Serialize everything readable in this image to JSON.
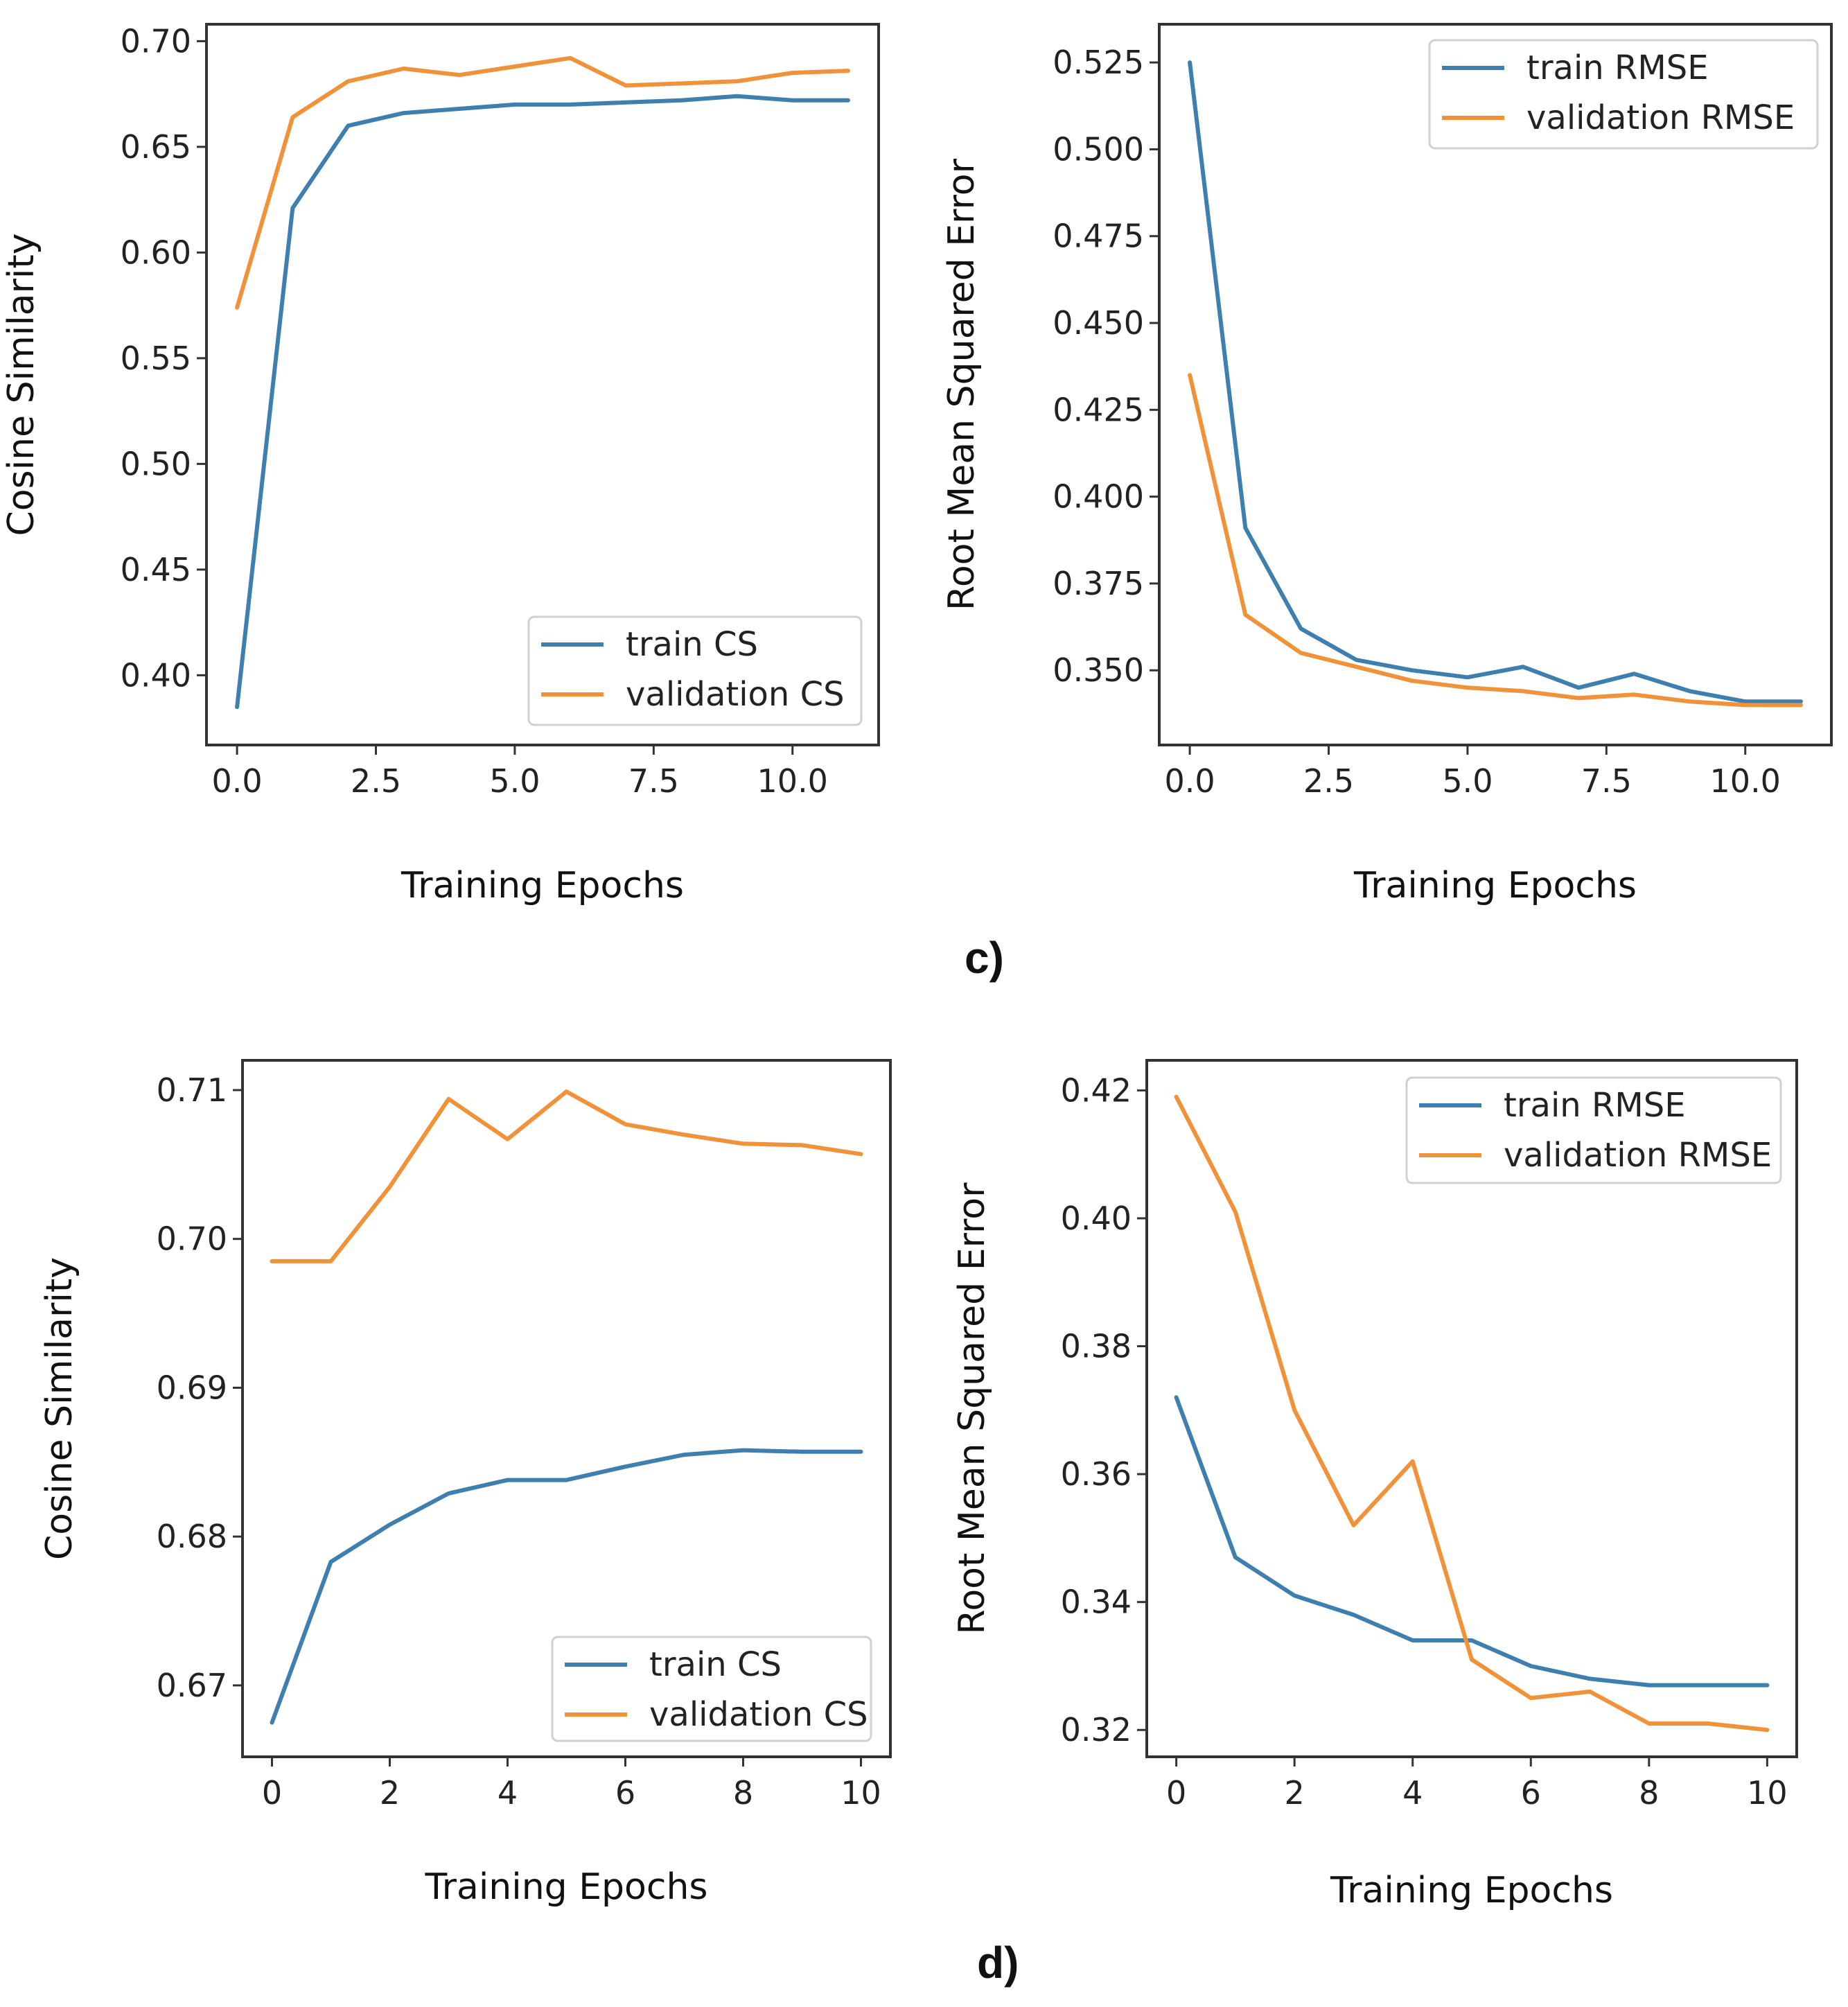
{
  "figure": {
    "panel_labels": [
      "c)",
      "d)"
    ]
  },
  "colors": {
    "train": "#3f7fb0",
    "validation": "#f0923a",
    "axes": "#333333",
    "text": "#222222",
    "legend_border": "#d0d0d0"
  },
  "chart_data": [
    {
      "id": "c-cs",
      "type": "line",
      "title": "",
      "xlabel": "Training Epochs",
      "ylabel": "Cosine Similarity",
      "xlim": [
        -0.55,
        11.55
      ],
      "ylim": [
        0.367,
        0.708
      ],
      "xticks": [
        0,
        2.5,
        5,
        7.5,
        10
      ],
      "xticklabels": [
        "0.0",
        "2.5",
        "5.0",
        "7.5",
        "10.0"
      ],
      "yticks": [
        0.4,
        0.45,
        0.5,
        0.55,
        0.6,
        0.65,
        0.7
      ],
      "yticklabels": [
        "0.40",
        "0.45",
        "0.50",
        "0.55",
        "0.60",
        "0.65",
        "0.70"
      ],
      "legend_position": "lower-right",
      "x": [
        0,
        1,
        2,
        3,
        4,
        5,
        6,
        7,
        8,
        9,
        10,
        11
      ],
      "series": [
        {
          "name": "train CS",
          "color_key": "train",
          "values": [
            0.385,
            0.621,
            0.66,
            0.666,
            0.668,
            0.67,
            0.67,
            0.671,
            0.672,
            0.674,
            0.672,
            0.672
          ]
        },
        {
          "name": "validation CS",
          "color_key": "validation",
          "values": [
            0.574,
            0.664,
            0.681,
            0.687,
            0.684,
            0.688,
            0.692,
            0.679,
            0.68,
            0.681,
            0.685,
            0.686
          ]
        }
      ]
    },
    {
      "id": "c-rmse",
      "type": "line",
      "title": "",
      "xlabel": "Training Epochs",
      "ylabel": "Root Mean Squared Error",
      "xlim": [
        -0.55,
        11.55
      ],
      "ylim": [
        0.3285,
        0.536
      ],
      "xticks": [
        0,
        2.5,
        5,
        7.5,
        10
      ],
      "xticklabels": [
        "0.0",
        "2.5",
        "5.0",
        "7.5",
        "10.0"
      ],
      "yticks": [
        0.35,
        0.375,
        0.4,
        0.425,
        0.45,
        0.475,
        0.5,
        0.525
      ],
      "yticklabels": [
        "0.350",
        "0.375",
        "0.400",
        "0.425",
        "0.450",
        "0.475",
        "0.500",
        "0.525"
      ],
      "legend_position": "upper-right",
      "x": [
        0,
        1,
        2,
        3,
        4,
        5,
        6,
        7,
        8,
        9,
        10,
        11
      ],
      "series": [
        {
          "name": "train RMSE",
          "color_key": "train",
          "values": [
            0.525,
            0.391,
            0.362,
            0.353,
            0.35,
            0.348,
            0.351,
            0.345,
            0.349,
            0.344,
            0.341,
            0.341
          ]
        },
        {
          "name": "validation RMSE",
          "color_key": "validation",
          "values": [
            0.435,
            0.366,
            0.355,
            0.351,
            0.347,
            0.345,
            0.344,
            0.342,
            0.343,
            0.341,
            0.34,
            0.34
          ]
        }
      ]
    },
    {
      "id": "d-cs",
      "type": "line",
      "title": "",
      "xlabel": "Training Epochs",
      "ylabel": "Cosine Similarity",
      "xlim": [
        -0.5,
        10.5
      ],
      "ylim": [
        0.6652,
        0.712
      ],
      "xticks": [
        0,
        2,
        4,
        6,
        8,
        10
      ],
      "xticklabels": [
        "0",
        "2",
        "4",
        "6",
        "8",
        "10"
      ],
      "yticks": [
        0.67,
        0.68,
        0.69,
        0.7,
        0.71
      ],
      "yticklabels": [
        "0.67",
        "0.68",
        "0.69",
        "0.70",
        "0.71"
      ],
      "legend_position": "lower-right",
      "x": [
        0,
        1,
        2,
        3,
        4,
        5,
        6,
        7,
        8,
        9,
        10
      ],
      "series": [
        {
          "name": "train CS",
          "color_key": "train",
          "values": [
            0.6675,
            0.6783,
            0.6808,
            0.6829,
            0.6838,
            0.6838,
            0.6847,
            0.6855,
            0.6858,
            0.6857,
            0.6857
          ]
        },
        {
          "name": "validation CS",
          "color_key": "validation",
          "values": [
            0.6985,
            0.6985,
            0.7035,
            0.7094,
            0.7067,
            0.7099,
            0.7077,
            0.707,
            0.7064,
            0.7063,
            0.7057
          ]
        }
      ]
    },
    {
      "id": "d-rmse",
      "type": "line",
      "title": "",
      "xlabel": "Training Epochs",
      "ylabel": "Root Mean Squared Error",
      "xlim": [
        -0.5,
        10.5
      ],
      "ylim": [
        0.3158,
        0.4247
      ],
      "xticks": [
        0,
        2,
        4,
        6,
        8,
        10
      ],
      "xticklabels": [
        "0",
        "2",
        "4",
        "6",
        "8",
        "10"
      ],
      "yticks": [
        0.32,
        0.34,
        0.36,
        0.38,
        0.4,
        0.42
      ],
      "yticklabels": [
        "0.32",
        "0.34",
        "0.36",
        "0.38",
        "0.40",
        "0.42"
      ],
      "legend_position": "upper-right",
      "x": [
        0,
        1,
        2,
        3,
        4,
        5,
        6,
        7,
        8,
        9,
        10
      ],
      "series": [
        {
          "name": "train RMSE",
          "color_key": "train",
          "values": [
            0.372,
            0.347,
            0.341,
            0.338,
            0.334,
            0.334,
            0.33,
            0.328,
            0.327,
            0.327,
            0.327
          ]
        },
        {
          "name": "validation RMSE",
          "color_key": "validation",
          "values": [
            0.419,
            0.401,
            0.37,
            0.352,
            0.362,
            0.331,
            0.325,
            0.326,
            0.321,
            0.321,
            0.32
          ]
        }
      ]
    }
  ]
}
